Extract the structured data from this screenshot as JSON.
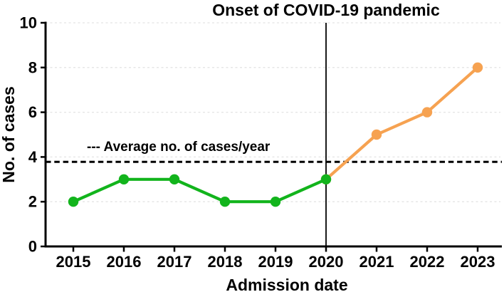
{
  "figure": {
    "background": "#ffffff",
    "description": "Line chart of number of admitted cases per year, split at the onset of the COVID-19 pandemic"
  },
  "chart_data": {
    "type": "line",
    "title": "Onset of COVID-19 pandemic",
    "xlabel": "Admission date",
    "ylabel": "No. of cases",
    "x": [
      2015,
      2016,
      2017,
      2018,
      2019,
      2020,
      2021,
      2022,
      2023
    ],
    "xticklabels": [
      "2015",
      "2016",
      "2017",
      "2018",
      "2019",
      "2020",
      "2021",
      "2022",
      "2023"
    ],
    "ylim": [
      0,
      10
    ],
    "yticks": [
      0,
      2,
      4,
      6,
      8,
      10
    ],
    "grid": "horizontal light dashed lines at each y tick",
    "grid_color": "#e4e4e4",
    "axis_color": "#000000",
    "legend_position": "none (inline annotation above dashed average line)",
    "series": [
      {
        "name": "cases-before-pandemic",
        "color": "#12b41c",
        "x": [
          2015,
          2016,
          2017,
          2018,
          2019,
          2020
        ],
        "values": [
          2,
          3,
          3,
          2,
          2,
          3
        ]
      },
      {
        "name": "cases-after-pandemic",
        "color": "#f6a251",
        "x": [
          2020,
          2021,
          2022,
          2023
        ],
        "values": [
          3,
          5,
          6,
          8
        ]
      }
    ],
    "average_line": {
      "value": 3.78,
      "label": "--- Average no. of cases/year",
      "color": "#000000",
      "style": "dashed"
    },
    "vertical_line": {
      "x": 2020,
      "label": "Onset of COVID-19 pandemic",
      "color": "#1a1a1a",
      "style": "solid"
    }
  }
}
